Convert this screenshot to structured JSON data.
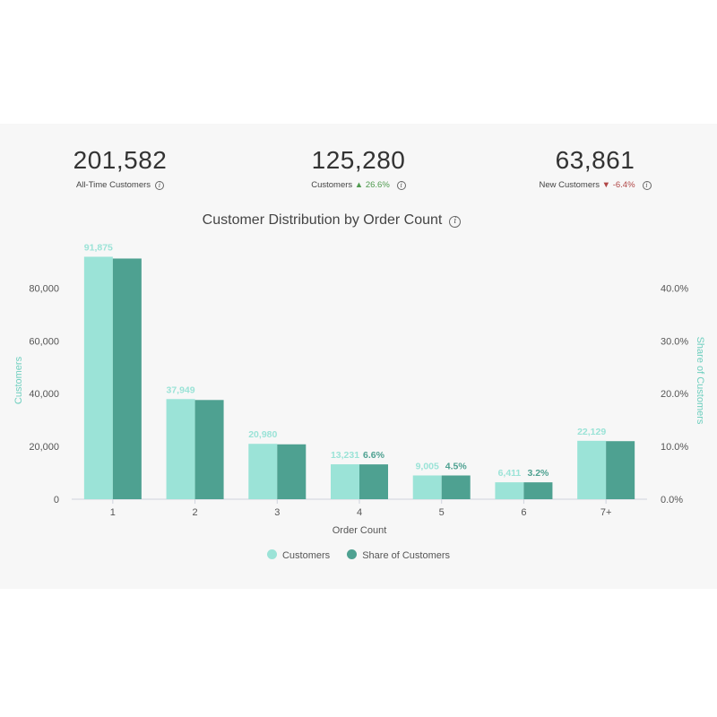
{
  "kpis": [
    {
      "value": "201,582",
      "label": "All-Time Customers",
      "delta": "",
      "direction": ""
    },
    {
      "value": "125,280",
      "label": "Customers",
      "delta": "26.6%",
      "direction": "up",
      "arrow": "▲"
    },
    {
      "value": "63,861",
      "label": "New Customers",
      "delta": "-6.4%",
      "direction": "down",
      "arrow": "▼"
    }
  ],
  "info_icon": "info-icon",
  "colors": {
    "customers": "#9be3d7",
    "share": "#4ea191",
    "axis_label": "#6fcfbf",
    "panel_bg": "#f7f7f7",
    "up": "#4f9a4f",
    "down": "#b04646"
  },
  "chart_data": {
    "type": "bar",
    "title": "Customer Distribution by Order Count",
    "xlabel": "Order Count",
    "ylabel": "Customers",
    "y2label": "Share of Customers",
    "categories": [
      "1",
      "2",
      "3",
      "4",
      "5",
      "6",
      "7+"
    ],
    "ylim": [
      0,
      90000
    ],
    "y2lim": [
      0,
      0.45
    ],
    "yticks": [
      "0",
      "20,000",
      "40,000",
      "60,000",
      "80,000"
    ],
    "yticks_values": [
      0,
      20000,
      40000,
      60000,
      80000
    ],
    "y2ticks": [
      "0.0%",
      "10.0%",
      "20.0%",
      "30.0%",
      "40.0%"
    ],
    "y2ticks_values": [
      0,
      0.1,
      0.2,
      0.3,
      0.4
    ],
    "series": [
      {
        "name": "Customers",
        "axis": "left",
        "values": [
          91875,
          37949,
          20980,
          13231,
          9005,
          6411,
          22129
        ],
        "labels": [
          "91,875",
          "37,949",
          "20,980",
          "13,231",
          "9,005",
          "6,411",
          "22,129"
        ]
      },
      {
        "name": "Share of Customers",
        "axis": "right",
        "values": [
          0.456,
          0.188,
          0.104,
          0.066,
          0.045,
          0.032,
          0.11
        ],
        "labels": [
          "",
          "",
          "",
          "6.6%",
          "4.5%",
          "3.2%",
          ""
        ]
      }
    ],
    "legend_position": "bottom-center",
    "grid": false
  }
}
